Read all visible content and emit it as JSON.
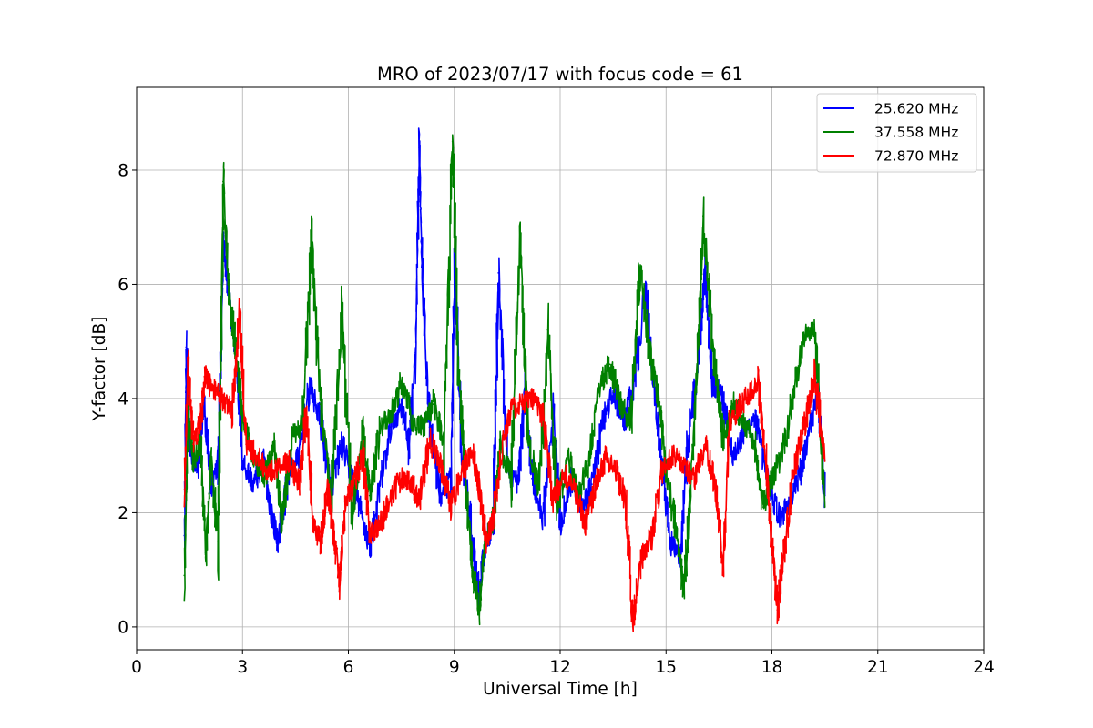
{
  "chart_data": {
    "type": "line",
    "title": "MRO of 2023/07/17 with focus code = 61",
    "xlabel": "Universal Time [h]",
    "ylabel": "Y-factor [dB]",
    "xlim": [
      0,
      24
    ],
    "ylim": [
      -0.4,
      9.45
    ],
    "xticks": [
      0,
      3,
      6,
      9,
      12,
      15,
      18,
      21,
      24
    ],
    "yticks": [
      0,
      2,
      4,
      6,
      8
    ],
    "grid": true,
    "legend_position": "top-right",
    "series": [
      {
        "name": "25.620 MHz",
        "color": "#0000ff",
        "points": [
          [
            1.35,
            1.6
          ],
          [
            1.4,
            4.9
          ],
          [
            1.5,
            3.1
          ],
          [
            1.7,
            2.7
          ],
          [
            1.9,
            3.9
          ],
          [
            2.1,
            2.4
          ],
          [
            2.3,
            3.0
          ],
          [
            2.45,
            6.7
          ],
          [
            2.6,
            5.8
          ],
          [
            2.8,
            4.8
          ],
          [
            3.0,
            2.9
          ],
          [
            3.3,
            2.5
          ],
          [
            3.6,
            2.9
          ],
          [
            3.8,
            2.0
          ],
          [
            4.0,
            1.5
          ],
          [
            4.3,
            2.7
          ],
          [
            4.6,
            3.0
          ],
          [
            4.9,
            4.2
          ],
          [
            5.2,
            3.6
          ],
          [
            5.5,
            2.4
          ],
          [
            5.8,
            3.2
          ],
          [
            6.1,
            2.6
          ],
          [
            6.3,
            2.1
          ],
          [
            6.6,
            1.4
          ],
          [
            6.9,
            2.5
          ],
          [
            7.2,
            3.5
          ],
          [
            7.5,
            3.9
          ],
          [
            7.7,
            3.2
          ],
          [
            7.9,
            4.8
          ],
          [
            8.0,
            8.4
          ],
          [
            8.1,
            5.9
          ],
          [
            8.3,
            3.5
          ],
          [
            8.6,
            2.3
          ],
          [
            8.9,
            2.6
          ],
          [
            9.0,
            6.6
          ],
          [
            9.2,
            3.1
          ],
          [
            9.5,
            1.6
          ],
          [
            9.7,
            0.5
          ],
          [
            9.8,
            1.2
          ],
          [
            10.1,
            2.0
          ],
          [
            10.25,
            6.2
          ],
          [
            10.5,
            2.8
          ],
          [
            10.8,
            2.5
          ],
          [
            11.0,
            4.2
          ],
          [
            11.2,
            2.6
          ],
          [
            11.5,
            1.9
          ],
          [
            11.8,
            3.7
          ],
          [
            12.0,
            1.8
          ],
          [
            12.3,
            2.6
          ],
          [
            12.6,
            2.1
          ],
          [
            12.9,
            2.5
          ],
          [
            13.2,
            3.6
          ],
          [
            13.5,
            4.1
          ],
          [
            13.8,
            3.6
          ],
          [
            14.1,
            4.3
          ],
          [
            14.4,
            5.9
          ],
          [
            14.7,
            3.9
          ],
          [
            14.9,
            2.6
          ],
          [
            15.1,
            1.5
          ],
          [
            15.4,
            1.2
          ],
          [
            15.6,
            3.2
          ],
          [
            15.9,
            4.7
          ],
          [
            16.1,
            6.3
          ],
          [
            16.3,
            4.3
          ],
          [
            16.6,
            4.0
          ],
          [
            16.9,
            3.0
          ],
          [
            17.2,
            3.4
          ],
          [
            17.5,
            3.7
          ],
          [
            17.7,
            3.1
          ],
          [
            17.9,
            2.5
          ],
          [
            18.2,
            1.9
          ],
          [
            18.5,
            2.2
          ],
          [
            18.8,
            2.7
          ],
          [
            19.0,
            3.3
          ],
          [
            19.3,
            4.2
          ],
          [
            19.5,
            2.3
          ]
        ]
      },
      {
        "name": "37.558 MHz",
        "color": "#008000",
        "points": [
          [
            1.35,
            0.9
          ],
          [
            1.45,
            3.9
          ],
          [
            1.6,
            2.9
          ],
          [
            1.8,
            3.3
          ],
          [
            1.95,
            1.3
          ],
          [
            2.1,
            2.9
          ],
          [
            2.3,
            1.5
          ],
          [
            2.45,
            7.8
          ],
          [
            2.6,
            5.9
          ],
          [
            2.8,
            4.9
          ],
          [
            3.0,
            3.6
          ],
          [
            3.3,
            3.0
          ],
          [
            3.6,
            2.6
          ],
          [
            3.9,
            3.1
          ],
          [
            4.1,
            1.8
          ],
          [
            4.4,
            3.3
          ],
          [
            4.7,
            3.6
          ],
          [
            4.95,
            6.7
          ],
          [
            5.2,
            3.9
          ],
          [
            5.5,
            2.3
          ],
          [
            5.8,
            5.4
          ],
          [
            6.1,
            2.0
          ],
          [
            6.4,
            3.4
          ],
          [
            6.6,
            2.3
          ],
          [
            6.9,
            3.5
          ],
          [
            7.2,
            3.7
          ],
          [
            7.5,
            4.3
          ],
          [
            7.8,
            3.6
          ],
          [
            8.1,
            3.5
          ],
          [
            8.4,
            3.9
          ],
          [
            8.7,
            3.3
          ],
          [
            8.95,
            8.5
          ],
          [
            9.1,
            4.6
          ],
          [
            9.3,
            2.7
          ],
          [
            9.5,
            1.0
          ],
          [
            9.7,
            0.3
          ],
          [
            9.85,
            1.5
          ],
          [
            10.1,
            1.9
          ],
          [
            10.3,
            3.2
          ],
          [
            10.6,
            2.6
          ],
          [
            10.85,
            6.6
          ],
          [
            11.1,
            3.2
          ],
          [
            11.4,
            2.4
          ],
          [
            11.65,
            5.2
          ],
          [
            11.9,
            2.1
          ],
          [
            12.2,
            3.0
          ],
          [
            12.5,
            2.3
          ],
          [
            12.8,
            2.9
          ],
          [
            13.1,
            4.2
          ],
          [
            13.4,
            4.6
          ],
          [
            13.7,
            3.9
          ],
          [
            14.0,
            3.6
          ],
          [
            14.25,
            6.3
          ],
          [
            14.5,
            4.9
          ],
          [
            14.8,
            3.9
          ],
          [
            15.0,
            2.7
          ],
          [
            15.3,
            1.6
          ],
          [
            15.5,
            0.6
          ],
          [
            15.7,
            2.6
          ],
          [
            15.9,
            4.9
          ],
          [
            16.05,
            7.2
          ],
          [
            16.3,
            5.0
          ],
          [
            16.6,
            3.3
          ],
          [
            16.9,
            3.9
          ],
          [
            17.2,
            3.6
          ],
          [
            17.5,
            3.2
          ],
          [
            17.75,
            2.1
          ],
          [
            18.0,
            2.6
          ],
          [
            18.3,
            3.1
          ],
          [
            18.6,
            4.1
          ],
          [
            18.9,
            5.1
          ],
          [
            19.2,
            5.3
          ],
          [
            19.5,
            2.1
          ]
        ]
      },
      {
        "name": "72.870 MHz",
        "color": "#ff0000",
        "points": [
          [
            1.35,
            2.4
          ],
          [
            1.45,
            4.6
          ],
          [
            1.6,
            3.2
          ],
          [
            1.8,
            3.6
          ],
          [
            1.95,
            4.4
          ],
          [
            2.1,
            4.2
          ],
          [
            2.4,
            4.0
          ],
          [
            2.7,
            3.8
          ],
          [
            2.9,
            5.5
          ],
          [
            3.1,
            3.2
          ],
          [
            3.4,
            3.0
          ],
          [
            3.7,
            2.7
          ],
          [
            4.0,
            2.8
          ],
          [
            4.3,
            2.9
          ],
          [
            4.6,
            2.5
          ],
          [
            4.8,
            3.8
          ],
          [
            5.0,
            1.8
          ],
          [
            5.2,
            1.5
          ],
          [
            5.4,
            2.4
          ],
          [
            5.6,
            1.5
          ],
          [
            5.75,
            0.8
          ],
          [
            5.9,
            2.2
          ],
          [
            6.1,
            2.4
          ],
          [
            6.4,
            3.0
          ],
          [
            6.6,
            1.6
          ],
          [
            6.9,
            1.8
          ],
          [
            7.2,
            2.3
          ],
          [
            7.5,
            2.6
          ],
          [
            7.8,
            2.5
          ],
          [
            8.0,
            2.2
          ],
          [
            8.3,
            3.3
          ],
          [
            8.6,
            2.8
          ],
          [
            8.9,
            2.1
          ],
          [
            9.2,
            2.7
          ],
          [
            9.5,
            3.1
          ],
          [
            9.7,
            2.4
          ],
          [
            9.9,
            1.5
          ],
          [
            10.1,
            1.9
          ],
          [
            10.3,
            3.0
          ],
          [
            10.6,
            3.8
          ],
          [
            10.9,
            3.9
          ],
          [
            11.2,
            4.0
          ],
          [
            11.5,
            3.7
          ],
          [
            11.8,
            2.2
          ],
          [
            12.1,
            2.7
          ],
          [
            12.4,
            2.4
          ],
          [
            12.7,
            1.8
          ],
          [
            13.0,
            2.5
          ],
          [
            13.3,
            3.0
          ],
          [
            13.6,
            2.7
          ],
          [
            13.85,
            2.2
          ],
          [
            14.05,
            0.1
          ],
          [
            14.3,
            1.2
          ],
          [
            14.6,
            1.6
          ],
          [
            14.9,
            2.8
          ],
          [
            15.2,
            3.0
          ],
          [
            15.5,
            2.8
          ],
          [
            15.8,
            2.6
          ],
          [
            16.1,
            3.2
          ],
          [
            16.4,
            2.4
          ],
          [
            16.6,
            1.1
          ],
          [
            16.8,
            3.6
          ],
          [
            17.1,
            3.9
          ],
          [
            17.4,
            4.1
          ],
          [
            17.6,
            4.3
          ],
          [
            17.8,
            3.1
          ],
          [
            18.0,
            1.4
          ],
          [
            18.15,
            0.3
          ],
          [
            18.35,
            1.4
          ],
          [
            18.6,
            2.7
          ],
          [
            18.9,
            3.5
          ],
          [
            19.2,
            4.4
          ],
          [
            19.5,
            2.9
          ]
        ]
      }
    ]
  }
}
